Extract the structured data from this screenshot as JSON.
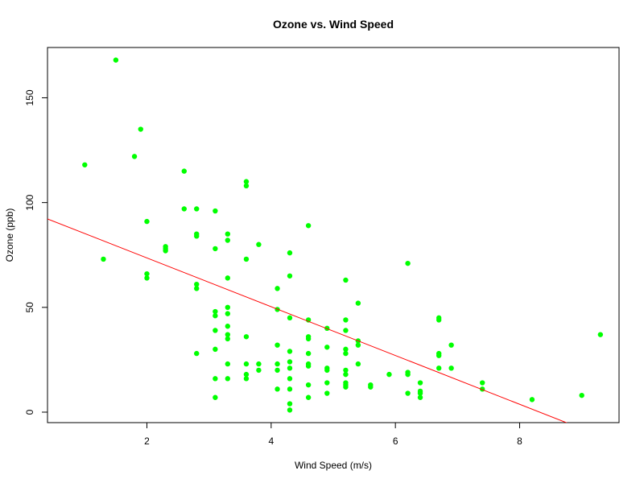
{
  "chart_data": {
    "type": "scatter",
    "title": "Ozone vs. Wind Speed",
    "xlabel": "Wind Speed (m/s)",
    "ylabel": "Ozone (ppb)",
    "xlim": [
      0.4,
      9.6
    ],
    "ylim": [
      -5,
      174
    ],
    "x_ticks": [
      2,
      4,
      6,
      8
    ],
    "y_ticks": [
      0,
      50,
      100,
      150
    ],
    "grid": false,
    "point_color": "#00ff00",
    "line_color": "#ff0000",
    "regression_line": {
      "intercept": 96.87,
      "slope": -11.64
    },
    "points": [
      {
        "x": 1.5,
        "y": 168
      },
      {
        "x": 1.0,
        "y": 118
      },
      {
        "x": 1.3,
        "y": 73
      },
      {
        "x": 1.8,
        "y": 122
      },
      {
        "x": 1.9,
        "y": 135
      },
      {
        "x": 2.0,
        "y": 91
      },
      {
        "x": 2.0,
        "y": 64
      },
      {
        "x": 2.0,
        "y": 66
      },
      {
        "x": 2.3,
        "y": 77
      },
      {
        "x": 2.3,
        "y": 79
      },
      {
        "x": 2.3,
        "y": 78
      },
      {
        "x": 2.6,
        "y": 115
      },
      {
        "x": 2.6,
        "y": 97
      },
      {
        "x": 2.8,
        "y": 97
      },
      {
        "x": 2.8,
        "y": 85
      },
      {
        "x": 2.8,
        "y": 84
      },
      {
        "x": 2.8,
        "y": 61
      },
      {
        "x": 2.8,
        "y": 59
      },
      {
        "x": 2.8,
        "y": 28
      },
      {
        "x": 3.1,
        "y": 96
      },
      {
        "x": 3.1,
        "y": 78
      },
      {
        "x": 3.1,
        "y": 48
      },
      {
        "x": 3.1,
        "y": 46
      },
      {
        "x": 3.1,
        "y": 39
      },
      {
        "x": 3.1,
        "y": 30
      },
      {
        "x": 3.1,
        "y": 16
      },
      {
        "x": 3.1,
        "y": 7
      },
      {
        "x": 3.3,
        "y": 85
      },
      {
        "x": 3.3,
        "y": 82
      },
      {
        "x": 3.3,
        "y": 64
      },
      {
        "x": 3.3,
        "y": 50
      },
      {
        "x": 3.3,
        "y": 47
      },
      {
        "x": 3.3,
        "y": 41
      },
      {
        "x": 3.3,
        "y": 37
      },
      {
        "x": 3.3,
        "y": 35
      },
      {
        "x": 3.3,
        "y": 23
      },
      {
        "x": 3.3,
        "y": 16
      },
      {
        "x": 3.6,
        "y": 110
      },
      {
        "x": 3.6,
        "y": 108
      },
      {
        "x": 3.6,
        "y": 73
      },
      {
        "x": 3.6,
        "y": 36
      },
      {
        "x": 3.6,
        "y": 23
      },
      {
        "x": 3.6,
        "y": 18
      },
      {
        "x": 3.6,
        "y": 16
      },
      {
        "x": 3.8,
        "y": 80
      },
      {
        "x": 3.8,
        "y": 23
      },
      {
        "x": 3.8,
        "y": 20
      },
      {
        "x": 4.1,
        "y": 59
      },
      {
        "x": 4.1,
        "y": 49
      },
      {
        "x": 4.1,
        "y": 32
      },
      {
        "x": 4.1,
        "y": 23
      },
      {
        "x": 4.1,
        "y": 20
      },
      {
        "x": 4.1,
        "y": 11
      },
      {
        "x": 4.3,
        "y": 76
      },
      {
        "x": 4.3,
        "y": 65
      },
      {
        "x": 4.3,
        "y": 45
      },
      {
        "x": 4.3,
        "y": 29
      },
      {
        "x": 4.3,
        "y": 24
      },
      {
        "x": 4.3,
        "y": 21
      },
      {
        "x": 4.3,
        "y": 16
      },
      {
        "x": 4.3,
        "y": 11
      },
      {
        "x": 4.3,
        "y": 4
      },
      {
        "x": 4.3,
        "y": 1
      },
      {
        "x": 4.6,
        "y": 89
      },
      {
        "x": 4.6,
        "y": 44
      },
      {
        "x": 4.6,
        "y": 36
      },
      {
        "x": 4.6,
        "y": 35
      },
      {
        "x": 4.6,
        "y": 28
      },
      {
        "x": 4.6,
        "y": 23
      },
      {
        "x": 4.6,
        "y": 22
      },
      {
        "x": 4.6,
        "y": 13
      },
      {
        "x": 4.6,
        "y": 7
      },
      {
        "x": 4.9,
        "y": 40
      },
      {
        "x": 4.9,
        "y": 31
      },
      {
        "x": 4.9,
        "y": 21
      },
      {
        "x": 4.9,
        "y": 20
      },
      {
        "x": 4.9,
        "y": 14
      },
      {
        "x": 4.9,
        "y": 9
      },
      {
        "x": 5.2,
        "y": 63
      },
      {
        "x": 5.2,
        "y": 44
      },
      {
        "x": 5.2,
        "y": 39
      },
      {
        "x": 5.2,
        "y": 30
      },
      {
        "x": 5.2,
        "y": 28
      },
      {
        "x": 5.2,
        "y": 20
      },
      {
        "x": 5.2,
        "y": 18
      },
      {
        "x": 5.2,
        "y": 14
      },
      {
        "x": 5.2,
        "y": 13
      },
      {
        "x": 5.2,
        "y": 12
      },
      {
        "x": 5.4,
        "y": 52
      },
      {
        "x": 5.4,
        "y": 34
      },
      {
        "x": 5.4,
        "y": 32
      },
      {
        "x": 5.4,
        "y": 23
      },
      {
        "x": 5.6,
        "y": 13
      },
      {
        "x": 5.6,
        "y": 12
      },
      {
        "x": 5.9,
        "y": 18
      },
      {
        "x": 6.2,
        "y": 71
      },
      {
        "x": 6.2,
        "y": 19
      },
      {
        "x": 6.2,
        "y": 18
      },
      {
        "x": 6.2,
        "y": 9
      },
      {
        "x": 6.4,
        "y": 14
      },
      {
        "x": 6.4,
        "y": 10
      },
      {
        "x": 6.4,
        "y": 9
      },
      {
        "x": 6.4,
        "y": 7
      },
      {
        "x": 6.7,
        "y": 45
      },
      {
        "x": 6.7,
        "y": 44
      },
      {
        "x": 6.7,
        "y": 28
      },
      {
        "x": 6.7,
        "y": 27
      },
      {
        "x": 6.7,
        "y": 21
      },
      {
        "x": 6.9,
        "y": 32
      },
      {
        "x": 6.9,
        "y": 21
      },
      {
        "x": 7.4,
        "y": 14
      },
      {
        "x": 7.4,
        "y": 11
      },
      {
        "x": 8.2,
        "y": 6
      },
      {
        "x": 9.0,
        "y": 8
      },
      {
        "x": 9.3,
        "y": 37
      }
    ]
  }
}
